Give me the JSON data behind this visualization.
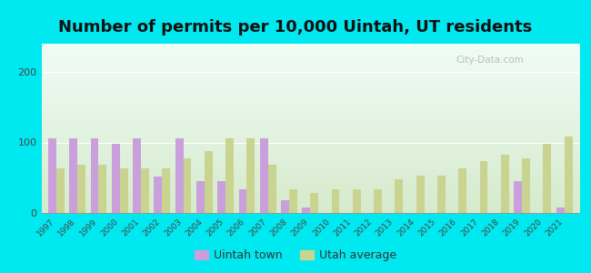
{
  "title": "Number of permits per 10,000 Uintah, UT residents",
  "years": [
    1997,
    1998,
    1999,
    2000,
    2001,
    2002,
    2003,
    2004,
    2005,
    2006,
    2007,
    2008,
    2009,
    2010,
    2011,
    2012,
    2013,
    2014,
    2015,
    2016,
    2017,
    2018,
    2019,
    2020,
    2021
  ],
  "uintah_values": [
    106,
    106,
    106,
    98,
    106,
    52,
    106,
    45,
    45,
    33,
    106,
    18,
    8,
    0,
    0,
    0,
    0,
    0,
    0,
    0,
    0,
    0,
    45,
    0,
    8
  ],
  "utah_values": [
    63,
    68,
    68,
    63,
    63,
    63,
    78,
    88,
    106,
    106,
    68,
    33,
    28,
    33,
    33,
    33,
    48,
    53,
    53,
    63,
    73,
    83,
    78,
    98,
    108
  ],
  "uintah_color": "#c9a0dc",
  "utah_color": "#c8d490",
  "bg_top_color": "#f0faff",
  "bg_bottom_color": "#ddeedd",
  "outer_bg": "#00e8f0",
  "ylim": [
    0,
    240
  ],
  "yticks": [
    0,
    100,
    200
  ],
  "bar_width": 0.38,
  "title_fontsize": 13,
  "legend_uintah": "Uintah town",
  "legend_utah": "Utah average"
}
